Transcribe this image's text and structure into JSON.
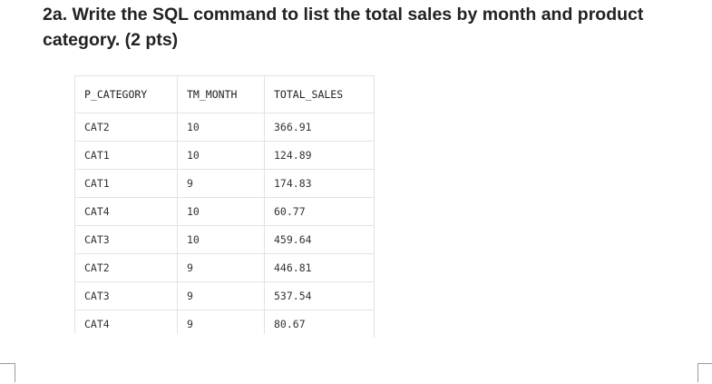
{
  "question": {
    "text": "2a. Write the SQL command to list the total sales by month and product category.  (2 pts)"
  },
  "table": {
    "columns": [
      "P_CATEGORY",
      "TM_MONTH",
      "TOTAL_SALES"
    ],
    "rows": [
      [
        "CAT2",
        "10",
        "366.91"
      ],
      [
        "CAT1",
        "10",
        "124.89"
      ],
      [
        "CAT1",
        "9",
        "174.83"
      ],
      [
        "CAT4",
        "10",
        "60.77"
      ],
      [
        "CAT3",
        "10",
        "459.64"
      ],
      [
        "CAT2",
        "9",
        "446.81"
      ],
      [
        "CAT3",
        "9",
        "537.54"
      ],
      [
        "CAT4",
        "9",
        "80.67"
      ]
    ]
  }
}
